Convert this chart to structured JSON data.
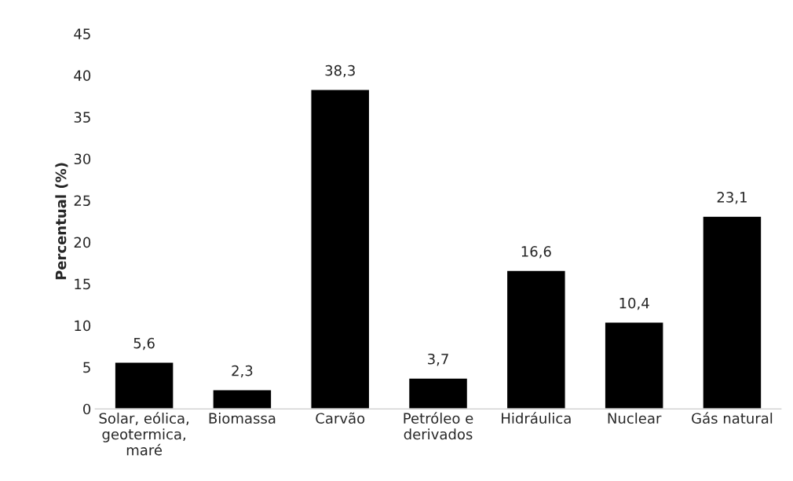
{
  "chart_data": {
    "type": "bar",
    "ylabel": "Percentual (%)",
    "categories": [
      "Solar, eólica,\ngeotermica,\nmaré",
      "Biomassa",
      "Carvão",
      "Petróleo e\nderivados",
      "Hidráulica",
      "Nuclear",
      "Gás natural"
    ],
    "values": [
      5.6,
      2.3,
      38.3,
      3.7,
      16.6,
      10.4,
      23.1
    ],
    "value_labels": [
      "5,6",
      "2,3",
      "38,3",
      "3,7",
      "16,6",
      "10,4",
      "23,1"
    ],
    "color": "#000000",
    "ylim": [
      0,
      45
    ],
    "yticks": [
      0,
      5,
      10,
      15,
      20,
      25,
      30,
      35,
      40,
      45
    ],
    "grid": false
  }
}
